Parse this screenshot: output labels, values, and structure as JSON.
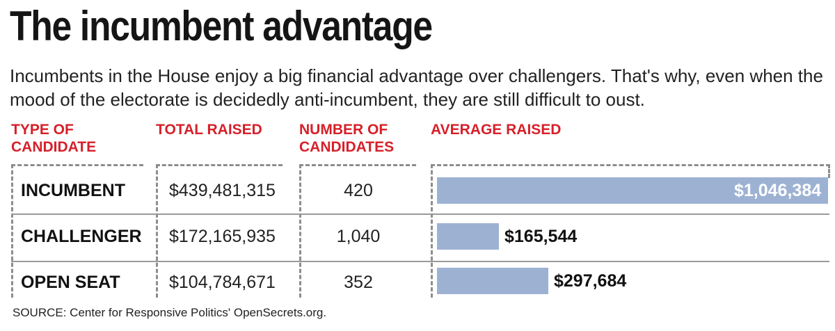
{
  "header": {
    "title": "The incumbent advantage",
    "subtitle": "Incumbents in the House enjoy a big financial advantage over challengers. That's why, even when the mood of the electorate is decidedly anti-incumbent, they are still difficult to oust."
  },
  "columns": {
    "type": "TYPE OF CANDIDATE",
    "total": "TOTAL RAISED",
    "count": "NUMBER OF CANDIDATES",
    "average": "AVERAGE RAISED"
  },
  "rows": [
    {
      "type": "INCUMBENT",
      "total": "$439,481,315",
      "count": "420",
      "average_label": "$1,046,384"
    },
    {
      "type": "CHALLENGER",
      "total": "$172,165,935",
      "count": "1,040",
      "average_label": "$165,544"
    },
    {
      "type": "OPEN SEAT",
      "total": "$104,784,671",
      "count": "352",
      "average_label": "$297,684"
    }
  ],
  "chart_data": {
    "type": "bar",
    "orientation": "horizontal",
    "categories": [
      "INCUMBENT",
      "CHALLENGER",
      "OPEN SEAT"
    ],
    "values": [
      1046384,
      165544,
      297684
    ],
    "title": "The incumbent advantage",
    "xlabel": "AVERAGE RAISED",
    "ylabel": "TYPE OF CANDIDATE",
    "xlim": [
      0,
      1046384
    ],
    "grid": false,
    "bar_color": "#9db2d3"
  },
  "footer": {
    "source": "SOURCE: Center for Responsive Politics' OpenSecrets.org."
  }
}
